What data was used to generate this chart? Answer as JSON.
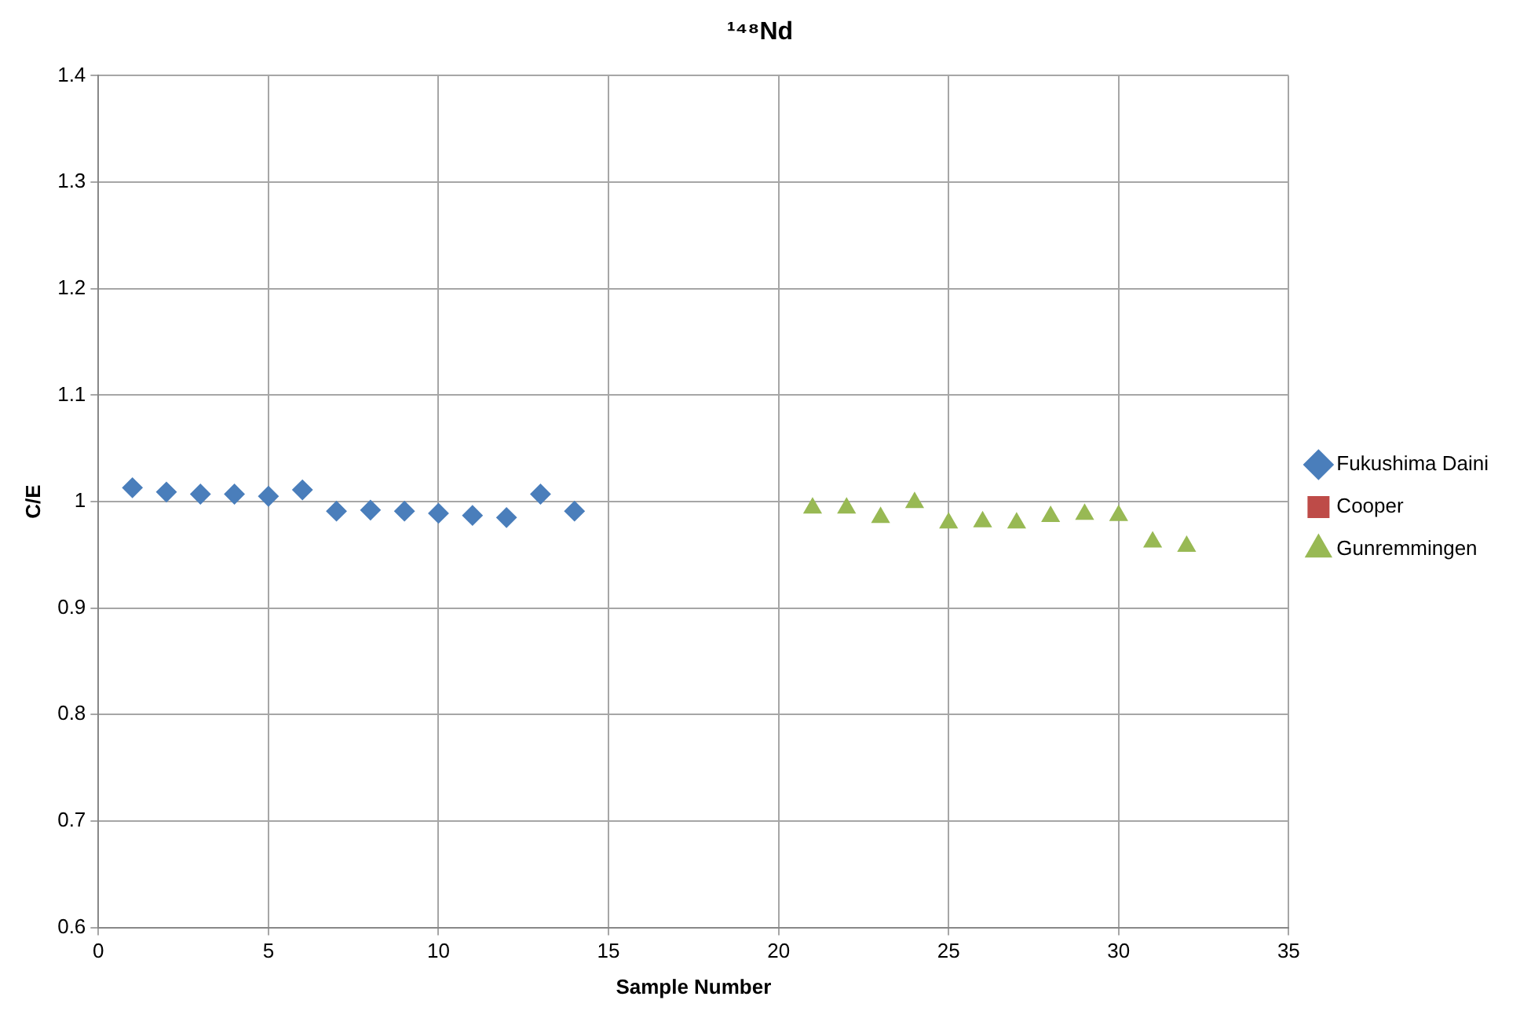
{
  "chart_data": {
    "type": "scatter",
    "title": "¹⁴⁸Nd",
    "xlabel": "Sample Number",
    "ylabel": "C/E",
    "xlim": [
      0,
      35
    ],
    "xticks": [
      0,
      5,
      10,
      15,
      20,
      25,
      30,
      35
    ],
    "ylim": [
      0.6,
      1.4
    ],
    "yticks": [
      0.6,
      0.7,
      0.8,
      0.9,
      1,
      1.1,
      1.2,
      1.3,
      1.4
    ],
    "grid": true,
    "legend": "right",
    "series": [
      {
        "name": "Fukushima Daini",
        "color": "#4a7ebb",
        "marker": "diamond",
        "x": [
          1,
          2,
          3,
          4,
          5,
          6,
          7,
          8,
          9,
          10,
          11,
          12,
          13,
          14
        ],
        "values": [
          1.013,
          1.009,
          1.007,
          1.007,
          1.005,
          1.011,
          0.991,
          0.992,
          0.991,
          0.989,
          0.987,
          0.985,
          1.007,
          0.991
        ]
      },
      {
        "name": "Cooper",
        "color": "#be4b48",
        "marker": "square"
      },
      {
        "name": "Gunremmingen",
        "color": "#98b954",
        "marker": "triangle",
        "x": [
          21,
          22,
          23,
          24,
          25,
          26,
          27,
          28,
          29,
          30,
          31,
          32
        ],
        "values": [
          0.994,
          0.994,
          0.985,
          0.999,
          0.98,
          0.981,
          0.98,
          0.986,
          0.988,
          0.987,
          0.962,
          0.958
        ]
      }
    ]
  }
}
